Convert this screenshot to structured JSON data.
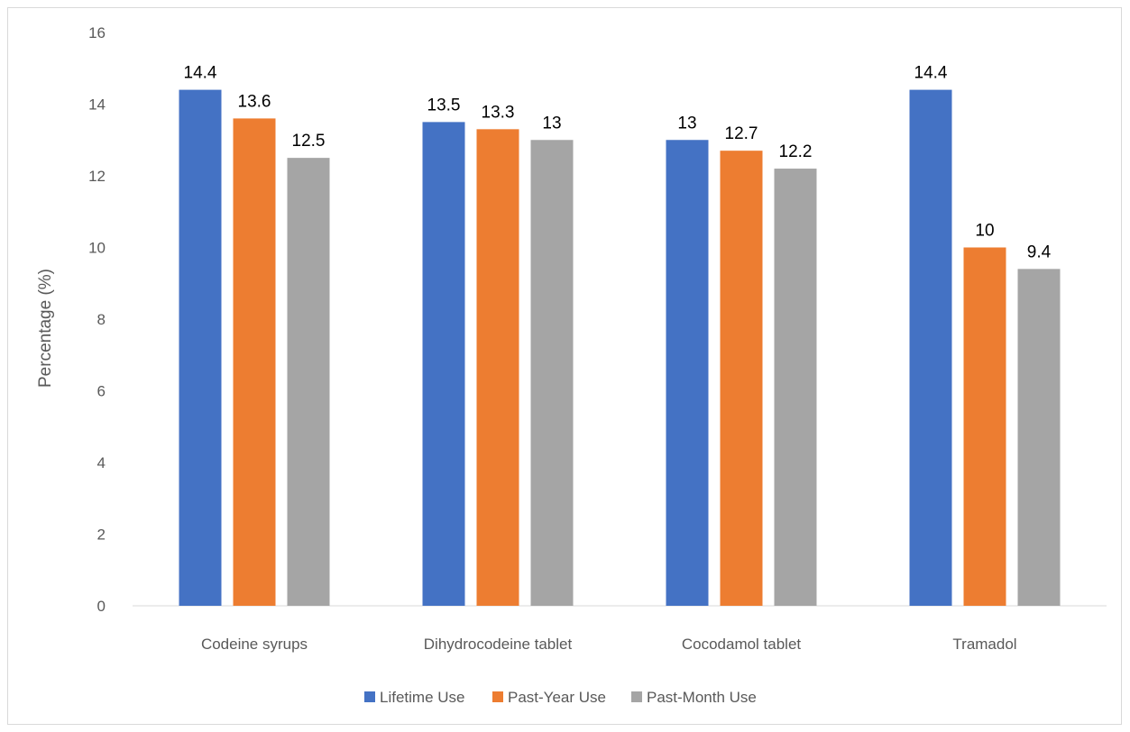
{
  "chart_data": {
    "type": "bar",
    "title": "",
    "xlabel": "",
    "ylabel": "Percentage (%)",
    "ylim": [
      0,
      16
    ],
    "yticks": [
      "0",
      "2",
      "4",
      "6",
      "8",
      "10",
      "12",
      "14",
      "16"
    ],
    "grid": false,
    "legend_position": "bottom",
    "categories": [
      "Codeine syrups",
      "Dihydrocodeine tablet",
      "Cocodamol tablet",
      "Tramadol"
    ],
    "series": [
      {
        "name": "Lifetime Use",
        "color": "#4472c4",
        "values": [
          14.4,
          13.5,
          13,
          14.4
        ],
        "labels": [
          "14.4",
          "13.5",
          "13",
          "14.4"
        ]
      },
      {
        "name": "Past-Year Use",
        "color": "#ed7d31",
        "values": [
          13.6,
          13.3,
          12.7,
          10
        ],
        "labels": [
          "13.6",
          "13.3",
          "12.7",
          "10"
        ]
      },
      {
        "name": "Past-Month Use",
        "color": "#a5a5a5",
        "values": [
          12.5,
          13,
          12.2,
          9.4
        ],
        "labels": [
          "12.5",
          "13",
          "12.2",
          "9.4"
        ]
      }
    ]
  }
}
